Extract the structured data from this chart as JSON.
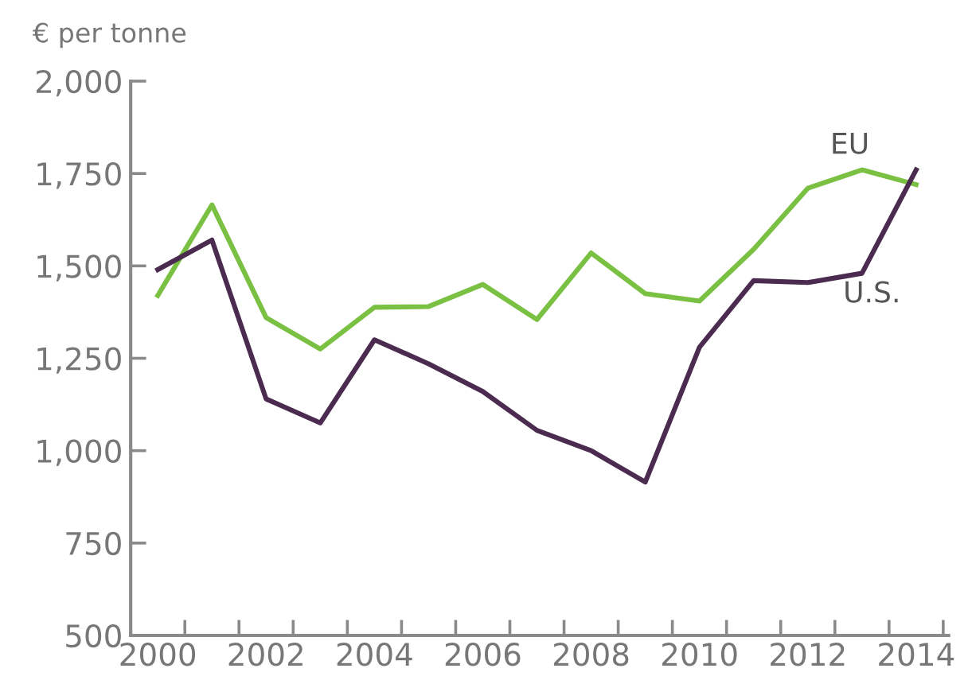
{
  "chart_data": {
    "type": "line",
    "ylabel": "€ per tonne",
    "x": [
      2000,
      2001,
      2002,
      2003,
      2004,
      2005,
      2006,
      2007,
      2008,
      2009,
      2010,
      2011,
      2012,
      2013,
      2014
    ],
    "series": [
      {
        "name": "EU",
        "color": "#7ac143",
        "values": [
          1420,
          1665,
          1360,
          1275,
          1388,
          1390,
          1450,
          1355,
          1535,
          1425,
          1405,
          1545,
          1710,
          1760,
          1720
        ]
      },
      {
        "name": "U.S.",
        "color": "#4b2c50",
        "values": [
          1490,
          1570,
          1140,
          1075,
          1300,
          1235,
          1160,
          1055,
          1000,
          915,
          1280,
          1460,
          1455,
          1480,
          1760
        ]
      }
    ],
    "xlim": [
      1999.5,
      2014.6
    ],
    "xticks": [
      2000,
      {
        "value": 2000.5,
        "label": null
      },
      {
        "value": 2001.5,
        "label": null
      },
      2002,
      {
        "value": 2002.5,
        "label": null
      },
      {
        "value": 2003.5,
        "label": null
      },
      2004,
      {
        "value": 2004.5,
        "label": null
      },
      {
        "value": 2005.5,
        "label": null
      },
      2006,
      {
        "value": 2006.5,
        "label": null
      },
      {
        "value": 2007.5,
        "label": null
      },
      2008,
      {
        "value": 2008.5,
        "label": null
      },
      {
        "value": 2009.5,
        "label": null
      },
      2010,
      {
        "value": 2010.5,
        "label": null
      },
      {
        "value": 2011.5,
        "label": null
      },
      2012,
      {
        "value": 2012.5,
        "label": null
      },
      {
        "value": 2013.5,
        "label": null
      },
      2014,
      {
        "value": 2014.5,
        "label": null
      }
    ],
    "ylim": [
      500,
      2000
    ],
    "yticks": [
      500,
      750,
      {
        "value": 1000,
        "label": "1,000"
      },
      {
        "value": 1250,
        "label": "1,250"
      },
      {
        "value": 1500,
        "label": "1,500"
      },
      {
        "value": 1750,
        "label": "1,750"
      },
      {
        "value": 2000,
        "label": "2,000"
      }
    ],
    "grid": false,
    "legend": false,
    "marker": "none",
    "line_style": "solid"
  }
}
